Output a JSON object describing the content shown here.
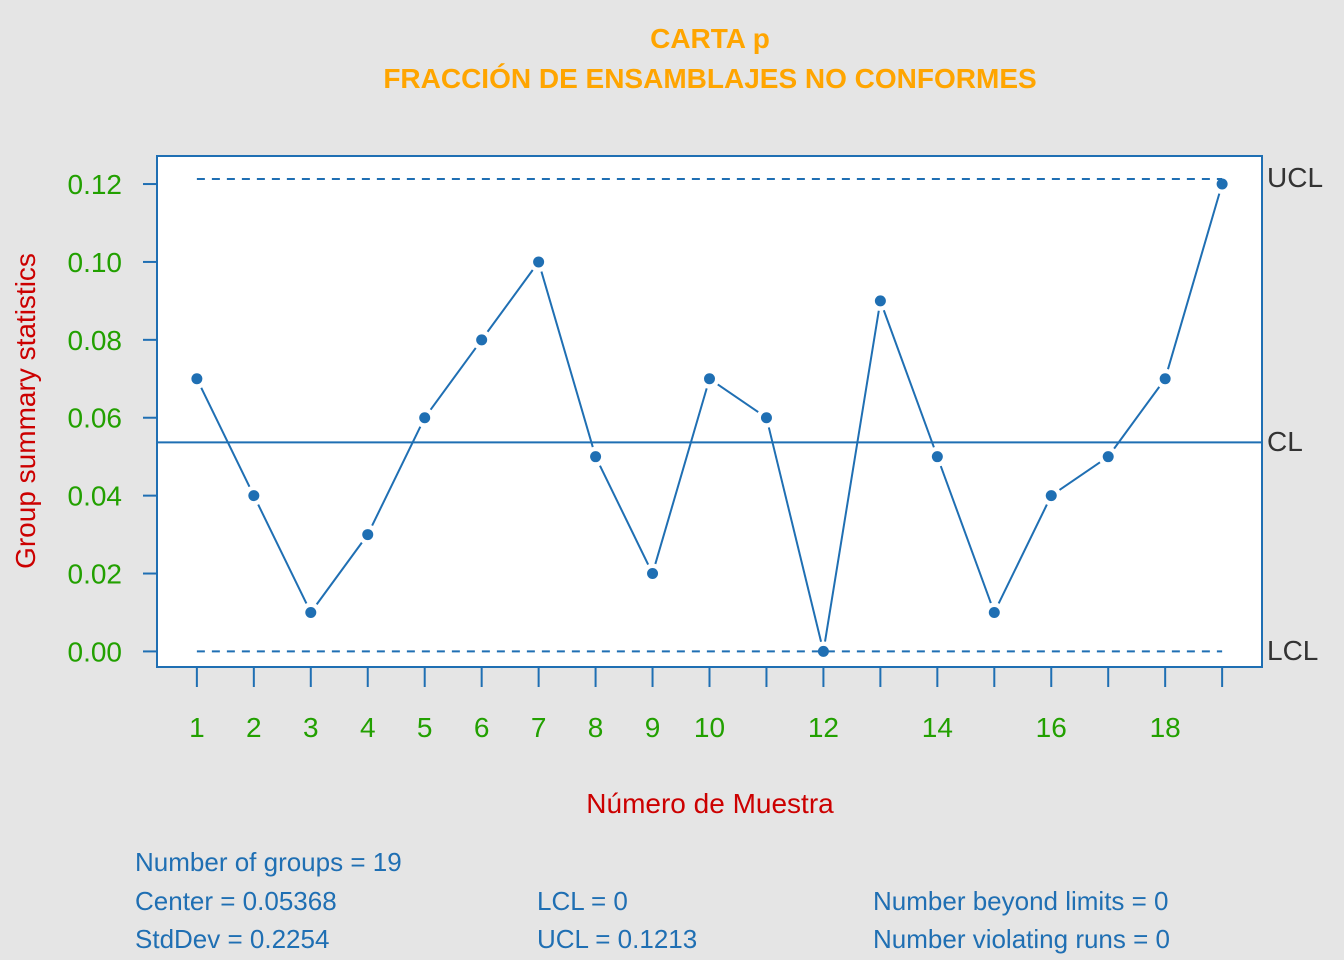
{
  "chart_data": {
    "type": "line",
    "title_line1": "CARTA p",
    "title_line2": "FRACCIÓN DE ENSAMBLAJES NO CONFORMES",
    "xlabel": "Número de Muestra",
    "ylabel": "Group summary statistics",
    "x": [
      1,
      2,
      3,
      4,
      5,
      6,
      7,
      8,
      9,
      10,
      11,
      12,
      13,
      14,
      15,
      16,
      17,
      18,
      19
    ],
    "values": [
      0.07,
      0.04,
      0.01,
      0.03,
      0.06,
      0.08,
      0.1,
      0.05,
      0.02,
      0.07,
      0.06,
      0.0,
      0.09,
      0.05,
      0.01,
      0.04,
      0.05,
      0.07,
      0.12
    ],
    "x_tick_labels": [
      "1",
      "2",
      "3",
      "4",
      "5",
      "6",
      "7",
      "8",
      "9",
      "10",
      "12",
      "14",
      "16",
      "18"
    ],
    "x_tick_label_positions": [
      1,
      2,
      3,
      4,
      5,
      6,
      7,
      8,
      9,
      10,
      12,
      14,
      16,
      18
    ],
    "y_ticks": [
      "0.00",
      "0.02",
      "0.04",
      "0.06",
      "0.08",
      "0.10",
      "0.12"
    ],
    "ylim": [
      -0.004,
      0.1272
    ],
    "xlim": [
      0.3,
      19.7
    ],
    "center": 0.05368,
    "ucl": 0.1213,
    "lcl": 0,
    "limit_labels": {
      "ucl": "UCL",
      "cl": "CL",
      "lcl": "LCL"
    },
    "colors": {
      "line": "#1f6fb3",
      "title": "#FFA500",
      "ticks": "#22a000",
      "axis_label": "#cc0000"
    }
  },
  "stats": {
    "groups": "Number of groups = 19",
    "center": "Center = 0.05368",
    "stddev": "StdDev = 0.2254",
    "lcl": "LCL = 0",
    "ucl": "UCL = 0.1213",
    "beyond": "Number beyond limits = 0",
    "runs": "Number violating runs = 0"
  }
}
